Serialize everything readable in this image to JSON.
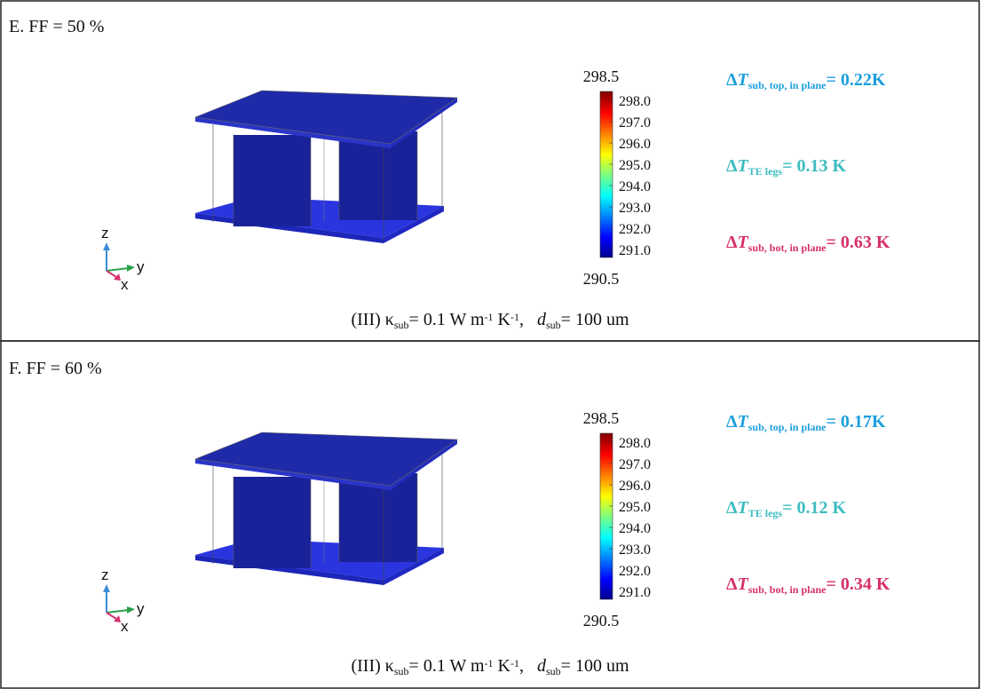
{
  "panels": [
    {
      "label": "E. FF = 50 %",
      "colorbar": {
        "max": "298.5",
        "min": "290.5",
        "ticks": [
          "298.0",
          "297.0",
          "296.0",
          "295.0",
          "294.0",
          "293.0",
          "292.0",
          "291.0"
        ]
      },
      "axes": [
        "z",
        "y",
        "x"
      ],
      "annotations": [
        {
          "color": "#1c9fdd",
          "parts": [
            {
              "text": "Δ"
            },
            {
              "text": "T",
              "style": "italic"
            },
            {
              "text": "sub, top, in plane",
              "style": "sub"
            },
            {
              "text": "= 0.22K"
            }
          ]
        },
        {
          "color": "#3cbcc0",
          "parts": [
            {
              "text": "Δ"
            },
            {
              "text": "T",
              "style": "italic"
            },
            {
              "text": "TE legs",
              "style": "sub"
            },
            {
              "text": "= 0.13 K"
            }
          ]
        },
        {
          "color": "#d6306a",
          "parts": [
            {
              "text": "Δ"
            },
            {
              "text": "T",
              "style": "italic"
            },
            {
              "text": "sub, bot, in plane",
              "style": "sub"
            },
            {
              "text": "= 0.63 K"
            }
          ]
        }
      ],
      "caption": [
        {
          "text": "(III) κ"
        },
        {
          "text": "sub",
          "style": "sub"
        },
        {
          "text": "= 0.1 W m"
        },
        {
          "text": "-1",
          "style": "sup"
        },
        {
          "text": " K"
        },
        {
          "text": "-1",
          "style": "sup"
        },
        {
          "text": ",   "
        },
        {
          "text": "d",
          "style": "italic"
        },
        {
          "text": "sub",
          "style": "sub"
        },
        {
          "text": "= 100 um"
        }
      ]
    },
    {
      "label": "F. FF = 60 %",
      "colorbar": {
        "max": "298.5",
        "min": "290.5",
        "ticks": [
          "298.0",
          "297.0",
          "296.0",
          "295.0",
          "294.0",
          "293.0",
          "292.0",
          "291.0"
        ]
      },
      "axes": [
        "z",
        "y",
        "x"
      ],
      "annotations": [
        {
          "color": "#1c9fdd",
          "parts": [
            {
              "text": "Δ"
            },
            {
              "text": "T",
              "style": "italic"
            },
            {
              "text": "sub, top, in plane",
              "style": "sub"
            },
            {
              "text": "= 0.17K"
            }
          ]
        },
        {
          "color": "#3cbcc0",
          "parts": [
            {
              "text": "Δ"
            },
            {
              "text": "T",
              "style": "italic"
            },
            {
              "text": "TE legs",
              "style": "sub"
            },
            {
              "text": "= 0.12 K"
            }
          ]
        },
        {
          "color": "#d6306a",
          "parts": [
            {
              "text": "Δ"
            },
            {
              "text": "T",
              "style": "italic"
            },
            {
              "text": "sub, bot, in plane",
              "style": "sub"
            },
            {
              "text": "= 0.34 K"
            }
          ]
        }
      ],
      "caption": [
        {
          "text": "(III) κ"
        },
        {
          "text": "sub",
          "style": "sub"
        },
        {
          "text": "= 0.1 W m"
        },
        {
          "text": "-1",
          "style": "sup"
        },
        {
          "text": " K"
        },
        {
          "text": "-1",
          "style": "sup"
        },
        {
          "text": ",   "
        },
        {
          "text": "d",
          "style": "italic"
        },
        {
          "text": "sub",
          "style": "sub"
        },
        {
          "text": "= 100 um"
        }
      ]
    }
  ]
}
